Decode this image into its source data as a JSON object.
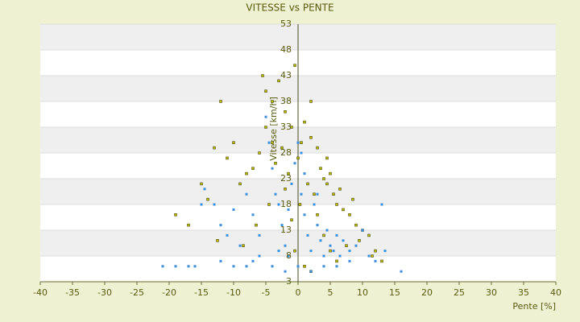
{
  "chart_data": {
    "type": "scatter",
    "title": "VITESSE vs PENTE",
    "x_label": "Pente [%]",
    "y_label": "Vitesse [km/h]",
    "xlim": [
      -40,
      40
    ],
    "xticks": [
      -40,
      -35,
      -30,
      -25,
      -20,
      -15,
      -10,
      -5,
      0,
      5,
      10,
      15,
      20,
      25,
      30,
      35,
      40
    ],
    "ylim": [
      3,
      53
    ],
    "yticks": [
      3,
      8,
      13,
      18,
      23,
      28,
      33,
      38,
      43,
      48,
      53
    ],
    "grid": true,
    "series": [
      {
        "color": "#b8b800",
        "x": [
          -5.5,
          -5,
          -4,
          -3,
          -2,
          -1,
          -0.5,
          0.5,
          1,
          2,
          3,
          3.5,
          4,
          4.5,
          5,
          5.5,
          6,
          6.5,
          7,
          8,
          8.5,
          9,
          10,
          11,
          12,
          13,
          -6,
          -7,
          -8,
          -9,
          -10,
          -11,
          -12,
          -13,
          -14,
          -15,
          -17,
          -19,
          -3.5,
          -2.5,
          -1.5,
          0,
          1.5,
          2.5,
          3,
          4,
          5,
          6,
          -4.5,
          -6.5,
          -8.5,
          -0.5,
          1,
          2,
          9.5,
          11.5,
          -12.5,
          -5,
          -2,
          7.5,
          0.3,
          -1,
          4.5,
          -4,
          2
        ],
        "values": [
          43,
          40,
          38,
          42,
          36,
          33,
          45,
          30,
          34,
          31,
          29,
          25,
          23,
          22,
          24,
          20,
          18,
          21,
          17,
          16,
          19,
          14,
          13,
          12,
          9,
          7,
          28,
          25,
          24,
          22,
          30,
          27,
          38,
          29,
          19,
          22,
          14,
          16,
          26,
          29,
          24,
          27,
          22,
          20,
          16,
          12,
          9,
          7,
          18,
          14,
          10,
          9,
          6,
          5,
          11,
          8,
          11,
          33,
          21,
          10,
          18,
          15,
          27,
          30,
          38
        ]
      },
      {
        "color": "#3a8fde",
        "x": [
          -21,
          -19,
          -17,
          -16,
          -14.5,
          -15,
          -13,
          -12,
          -11,
          -10,
          -9,
          -8,
          -7,
          -6,
          -5,
          -4.5,
          -4,
          -3.5,
          -3,
          -2.5,
          -2,
          -1.5,
          -1,
          -0.5,
          0,
          0.5,
          1,
          1.5,
          2,
          2.5,
          3,
          3.5,
          4,
          4.5,
          5,
          5.5,
          6,
          6.5,
          7,
          8,
          9,
          10,
          11,
          12,
          13,
          13.5,
          16,
          -6,
          -8,
          -10,
          -12,
          -4,
          -2,
          0,
          2,
          4,
          6,
          8,
          -3,
          1,
          0.5,
          -1.5,
          3,
          -7
        ],
        "values": [
          6,
          6,
          6,
          6,
          21,
          18,
          18,
          14,
          12,
          17,
          10,
          20,
          16,
          12,
          35,
          30,
          25,
          20,
          18,
          14,
          10,
          8,
          22,
          26,
          30,
          20,
          16,
          12,
          9,
          18,
          14,
          11,
          8,
          13,
          10,
          9,
          12,
          8,
          11,
          9,
          10,
          13,
          8,
          7,
          18,
          9,
          5,
          8,
          6,
          6,
          7,
          6,
          5,
          6,
          5,
          6,
          6,
          7,
          9,
          24,
          28,
          17,
          20,
          7
        ]
      }
    ]
  }
}
